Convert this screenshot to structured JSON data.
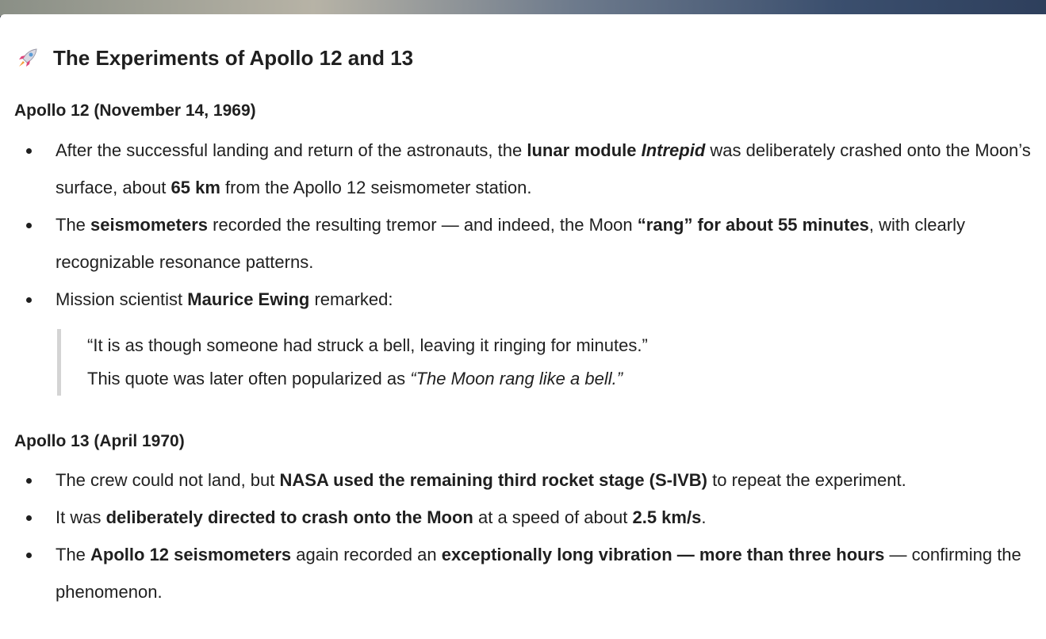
{
  "title": "The Experiments of Apollo 12 and 13",
  "sections": [
    {
      "heading": "Apollo 12 (November 14, 1969)",
      "items": [
        {
          "runs": [
            {
              "text": "After the successful landing and return of the astronauts, the "
            },
            {
              "text": "lunar module ",
              "bold": true
            },
            {
              "text": "Intrepid",
              "bold": true,
              "italic": true
            },
            {
              "text": " was deliberately crashed onto the Moon’s surface, about "
            },
            {
              "text": "65 km",
              "bold": true
            },
            {
              "text": " from the Apollo 12 seismometer station."
            }
          ]
        },
        {
          "runs": [
            {
              "text": "The "
            },
            {
              "text": "seismometers",
              "bold": true
            },
            {
              "text": " recorded the resulting tremor — and indeed, the Moon "
            },
            {
              "text": "“rang” for about 55 minutes",
              "bold": true
            },
            {
              "text": ", with clearly recognizable resonance patterns."
            }
          ]
        },
        {
          "runs": [
            {
              "text": "Mission scientist "
            },
            {
              "text": "Maurice Ewing",
              "bold": true
            },
            {
              "text": " remarked:"
            }
          ],
          "quote": [
            [
              {
                "text": "“It is as though someone had struck a bell, leaving it ringing for minutes.”"
              }
            ],
            [
              {
                "text": "This quote was later often popularized as "
              },
              {
                "text": "“The Moon rang like a bell.”",
                "italic": true
              }
            ]
          ]
        }
      ]
    },
    {
      "heading": "Apollo 13 (April 1970)",
      "items": [
        {
          "runs": [
            {
              "text": "The crew could not land, but "
            },
            {
              "text": "NASA used the remaining third rocket stage (S-IVB)",
              "bold": true
            },
            {
              "text": " to repeat the experiment."
            }
          ]
        },
        {
          "runs": [
            {
              "text": "It was "
            },
            {
              "text": "deliberately directed to crash onto the Moon",
              "bold": true
            },
            {
              "text": " at a speed of about "
            },
            {
              "text": "2.5 km/s",
              "bold": true
            },
            {
              "text": "."
            }
          ]
        },
        {
          "runs": [
            {
              "text": "The "
            },
            {
              "text": "Apollo 12 seismometers",
              "bold": true
            },
            {
              "text": " again recorded an "
            },
            {
              "text": "exceptionally long vibration — more than three hours",
              "bold": true
            },
            {
              "text": " — confirming the phenomenon."
            }
          ]
        }
      ]
    }
  ]
}
